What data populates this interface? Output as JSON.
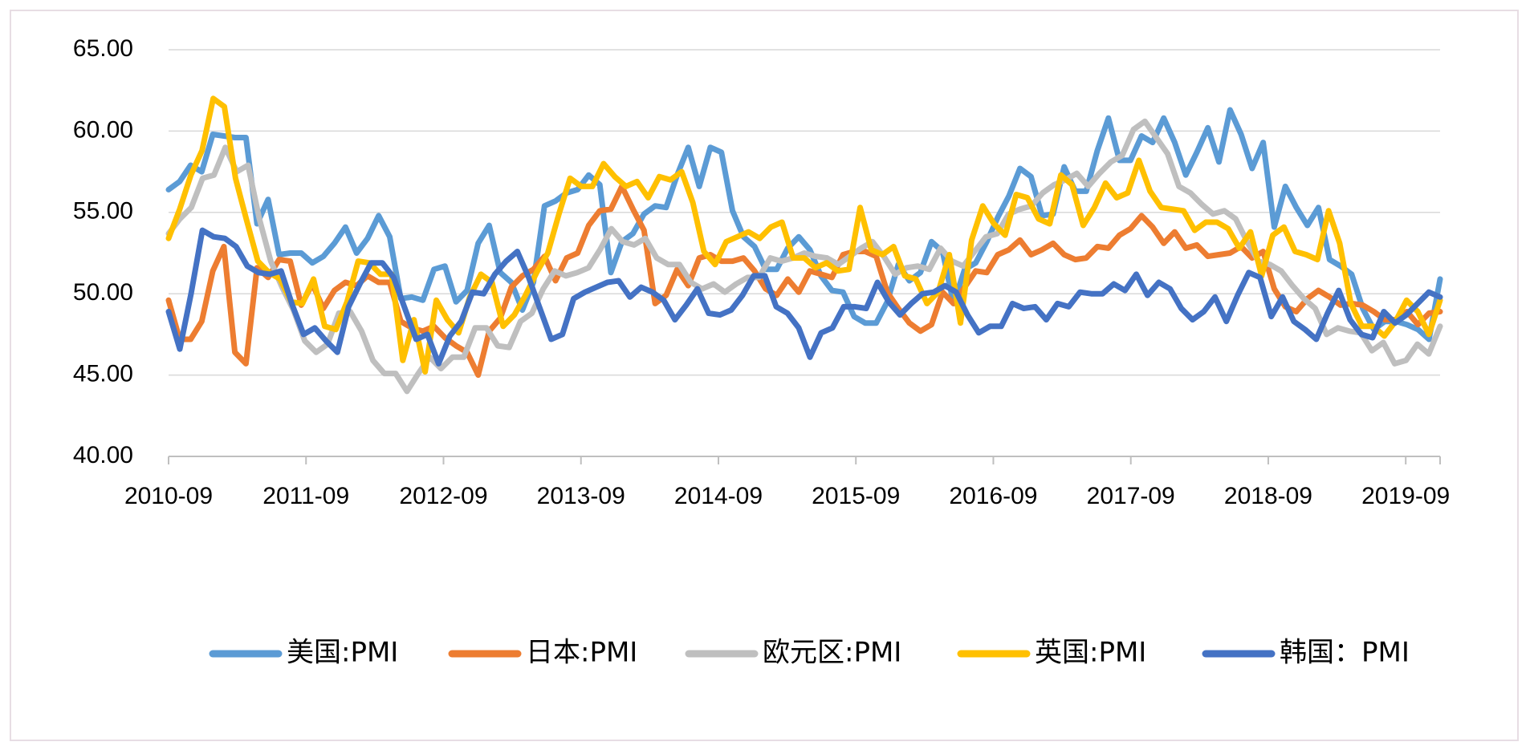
{
  "chart_data": {
    "type": "line",
    "title": "",
    "xlabel": "",
    "ylabel": "",
    "ylim": [
      40,
      65
    ],
    "y_ticks": [
      "40.00",
      "45.00",
      "50.00",
      "55.00",
      "60.00",
      "65.00"
    ],
    "x_ticks": [
      "2010-09",
      "2011-09",
      "2012-09",
      "2013-09",
      "2014-09",
      "2015-09",
      "2016-09",
      "2017-09",
      "2018-09",
      "2019-09"
    ],
    "x_start": "2010-09",
    "x_end": "2019-12",
    "grid": "horizontal",
    "legend_position": "bottom",
    "series": [
      {
        "name": "美国:PMI",
        "color": "#5b9bd5",
        "values": [
          56.4,
          56.9,
          57.9,
          57.5,
          59.8,
          59.7,
          59.6,
          59.6,
          54.3,
          55.8,
          52.4,
          52.5,
          52.5,
          51.9,
          52.3,
          53.1,
          54.1,
          52.5,
          53.4,
          54.8,
          53.5,
          49.7,
          49.8,
          49.6,
          51.5,
          51.7,
          49.5,
          50.2,
          53.1,
          54.2,
          51.3,
          50.7,
          49.0,
          50.7,
          55.4,
          55.7,
          56.2,
          56.4,
          57.3,
          56.7,
          51.3,
          53.2,
          53.7,
          54.9,
          55.4,
          55.3,
          57.3,
          59.0,
          56.6,
          59.0,
          58.7,
          55.1,
          53.5,
          52.9,
          51.5,
          51.5,
          52.8,
          53.5,
          52.7,
          51.1,
          50.2,
          50.1,
          48.6,
          48.2,
          48.2,
          49.5,
          51.8,
          50.8,
          51.3,
          53.2,
          52.6,
          49.4,
          51.5,
          51.9,
          53.2,
          54.7,
          56.0,
          57.7,
          57.2,
          54.8,
          54.9,
          57.8,
          56.3,
          56.3,
          58.8,
          60.8,
          58.2,
          58.2,
          59.7,
          59.3,
          60.8,
          59.3,
          57.3,
          58.7,
          60.2,
          58.1,
          61.3,
          59.8,
          57.7,
          59.3,
          54.1,
          56.6,
          55.3,
          54.2,
          55.3,
          52.1,
          51.7,
          51.2,
          49.1,
          47.8,
          48.3,
          48.3,
          48.1,
          47.8,
          47.2,
          50.9
        ]
      },
      {
        "name": "日本:PMI",
        "color": "#ed7d31",
        "values": [
          49.6,
          47.2,
          47.2,
          48.3,
          51.4,
          52.9,
          46.4,
          45.7,
          51.6,
          51.0,
          52.1,
          52.0,
          49.3,
          50.6,
          49.1,
          50.2,
          50.7,
          50.5,
          51.1,
          50.7,
          50.7,
          48.3,
          47.9,
          47.7,
          48.0,
          47.3,
          46.8,
          46.4,
          45.0,
          47.7,
          48.5,
          50.4,
          51.1,
          51.5,
          52.3,
          50.8,
          52.2,
          52.5,
          54.2,
          55.1,
          55.2,
          56.6,
          55.2,
          53.9,
          49.4,
          49.9,
          51.5,
          50.5,
          52.2,
          52.4,
          52.0,
          52.0,
          52.2,
          51.4,
          50.3,
          49.9,
          50.9,
          50.1,
          51.4,
          51.2,
          51.0,
          52.4,
          52.6,
          52.6,
          52.3,
          50.1,
          49.1,
          48.2,
          47.7,
          48.1,
          50.1,
          49.4,
          50.4,
          51.4,
          51.3,
          52.4,
          52.7,
          53.3,
          52.4,
          52.7,
          53.1,
          52.4,
          52.1,
          52.2,
          52.9,
          52.8,
          53.6,
          54.0,
          54.8,
          54.1,
          53.1,
          53.8,
          52.8,
          53.0,
          52.3,
          52.4,
          52.5,
          52.9,
          52.2,
          52.6,
          50.3,
          49.2,
          48.9,
          49.7,
          50.2,
          49.8,
          49.3,
          49.4,
          49.3,
          48.9,
          48.4,
          48.4,
          48.9,
          48.1,
          48.8,
          48.9
        ]
      },
      {
        "name": "欧元区:PMI",
        "color": "#bfbfbf",
        "values": [
          53.7,
          54.6,
          55.3,
          57.1,
          57.3,
          59.0,
          57.5,
          57.9,
          54.6,
          52.0,
          50.4,
          49.0,
          47.1,
          46.4,
          46.9,
          48.8,
          48.9,
          47.7,
          45.9,
          45.1,
          45.1,
          44.0,
          45.1,
          46.1,
          45.4,
          46.1,
          46.1,
          47.9,
          47.9,
          46.8,
          46.7,
          48.3,
          48.8,
          50.3,
          51.4,
          51.1,
          51.3,
          51.6,
          52.7,
          54.0,
          53.2,
          53.0,
          53.4,
          52.2,
          51.8,
          51.8,
          50.7,
          50.3,
          50.6,
          50.1,
          50.6,
          51.0,
          51.0,
          52.2,
          52.0,
          52.2,
          52.5,
          52.3,
          52.2,
          51.8,
          52.3,
          52.8,
          53.2,
          52.3,
          51.2,
          51.6,
          51.7,
          51.5,
          52.8,
          52.0,
          51.7,
          52.6,
          53.5,
          53.7,
          54.9,
          55.2,
          55.4,
          56.2,
          56.7,
          57.0,
          57.4,
          56.6,
          57.4,
          58.1,
          58.5,
          60.1,
          60.6,
          59.6,
          58.6,
          56.6,
          56.2,
          55.5,
          54.9,
          55.1,
          54.6,
          53.2,
          52.0,
          51.8,
          51.4,
          50.5,
          49.7,
          49.1,
          47.5,
          47.9,
          47.7,
          47.6,
          46.5,
          47.0,
          45.7,
          45.9,
          46.9,
          46.3,
          48.0
        ]
      },
      {
        "name": "英国:PMI",
        "color": "#ffc000",
        "values": [
          53.4,
          55.2,
          57.3,
          58.8,
          62.0,
          61.5,
          57.1,
          54.5,
          52.0,
          51.3,
          50.9,
          49.5,
          49.4,
          50.9,
          48.0,
          47.8,
          49.5,
          52.0,
          51.9,
          51.2,
          51.2,
          45.9,
          48.4,
          45.2,
          49.6,
          48.4,
          47.6,
          49.8,
          51.2,
          50.7,
          48.0,
          48.7,
          49.9,
          51.3,
          52.5,
          54.9,
          57.1,
          56.6,
          56.6,
          58.0,
          57.2,
          56.6,
          56.9,
          55.9,
          57.2,
          57.0,
          57.5,
          55.6,
          52.6,
          51.8,
          53.2,
          53.5,
          53.8,
          53.4,
          54.1,
          54.4,
          52.2,
          52.2,
          51.6,
          51.9,
          51.4,
          51.5,
          55.3,
          52.7,
          52.4,
          52.9,
          51.1,
          50.9,
          49.4,
          50.1,
          52.4,
          48.2,
          53.3,
          55.4,
          54.3,
          53.6,
          56.1,
          55.9,
          54.6,
          54.3,
          57.3,
          56.7,
          54.2,
          55.3,
          56.8,
          55.9,
          56.2,
          58.2,
          56.3,
          55.3,
          55.2,
          55.1,
          53.9,
          54.4,
          54.4,
          54.0,
          52.8,
          53.8,
          51.1,
          53.6,
          54.1,
          52.6,
          52.4,
          52.1,
          55.1,
          53.1,
          49.4,
          48.0,
          48.0,
          47.4,
          48.3,
          49.6,
          48.9,
          47.5,
          49.6
        ]
      },
      {
        "name": "韩国：PMI",
        "color": "#4472c4",
        "values": [
          48.9,
          46.6,
          50.0,
          53.9,
          53.5,
          53.4,
          52.9,
          51.7,
          51.3,
          51.2,
          51.4,
          49.3,
          47.5,
          47.9,
          47.1,
          46.4,
          49.2,
          50.6,
          51.9,
          51.9,
          51.0,
          49.1,
          47.2,
          47.5,
          45.7,
          47.4,
          48.3,
          50.1,
          50.0,
          51.2,
          52.0,
          52.6,
          51.0,
          49.1,
          47.2,
          47.5,
          49.7,
          50.1,
          50.4,
          50.7,
          50.8,
          49.8,
          50.4,
          50.1,
          49.6,
          48.4,
          49.3,
          50.3,
          48.8,
          48.7,
          49.0,
          49.9,
          51.1,
          51.1,
          49.2,
          48.8,
          47.9,
          46.1,
          47.6,
          47.9,
          49.2,
          49.2,
          49.1,
          50.7,
          49.5,
          48.7,
          49.4,
          50.0,
          50.1,
          50.5,
          50.1,
          48.7,
          47.6,
          48.0,
          48.0,
          49.4,
          49.1,
          49.2,
          48.4,
          49.4,
          49.2,
          50.1,
          50.0,
          50.0,
          50.6,
          50.2,
          51.2,
          49.9,
          50.7,
          50.3,
          49.1,
          48.4,
          48.9,
          49.8,
          48.3,
          49.9,
          51.3,
          51.0,
          48.6,
          49.8,
          48.3,
          47.8,
          47.2,
          48.8,
          50.2,
          48.4,
          47.5,
          47.3,
          48.9,
          48.2,
          48.7,
          49.4,
          50.1,
          49.8
        ]
      }
    ]
  }
}
